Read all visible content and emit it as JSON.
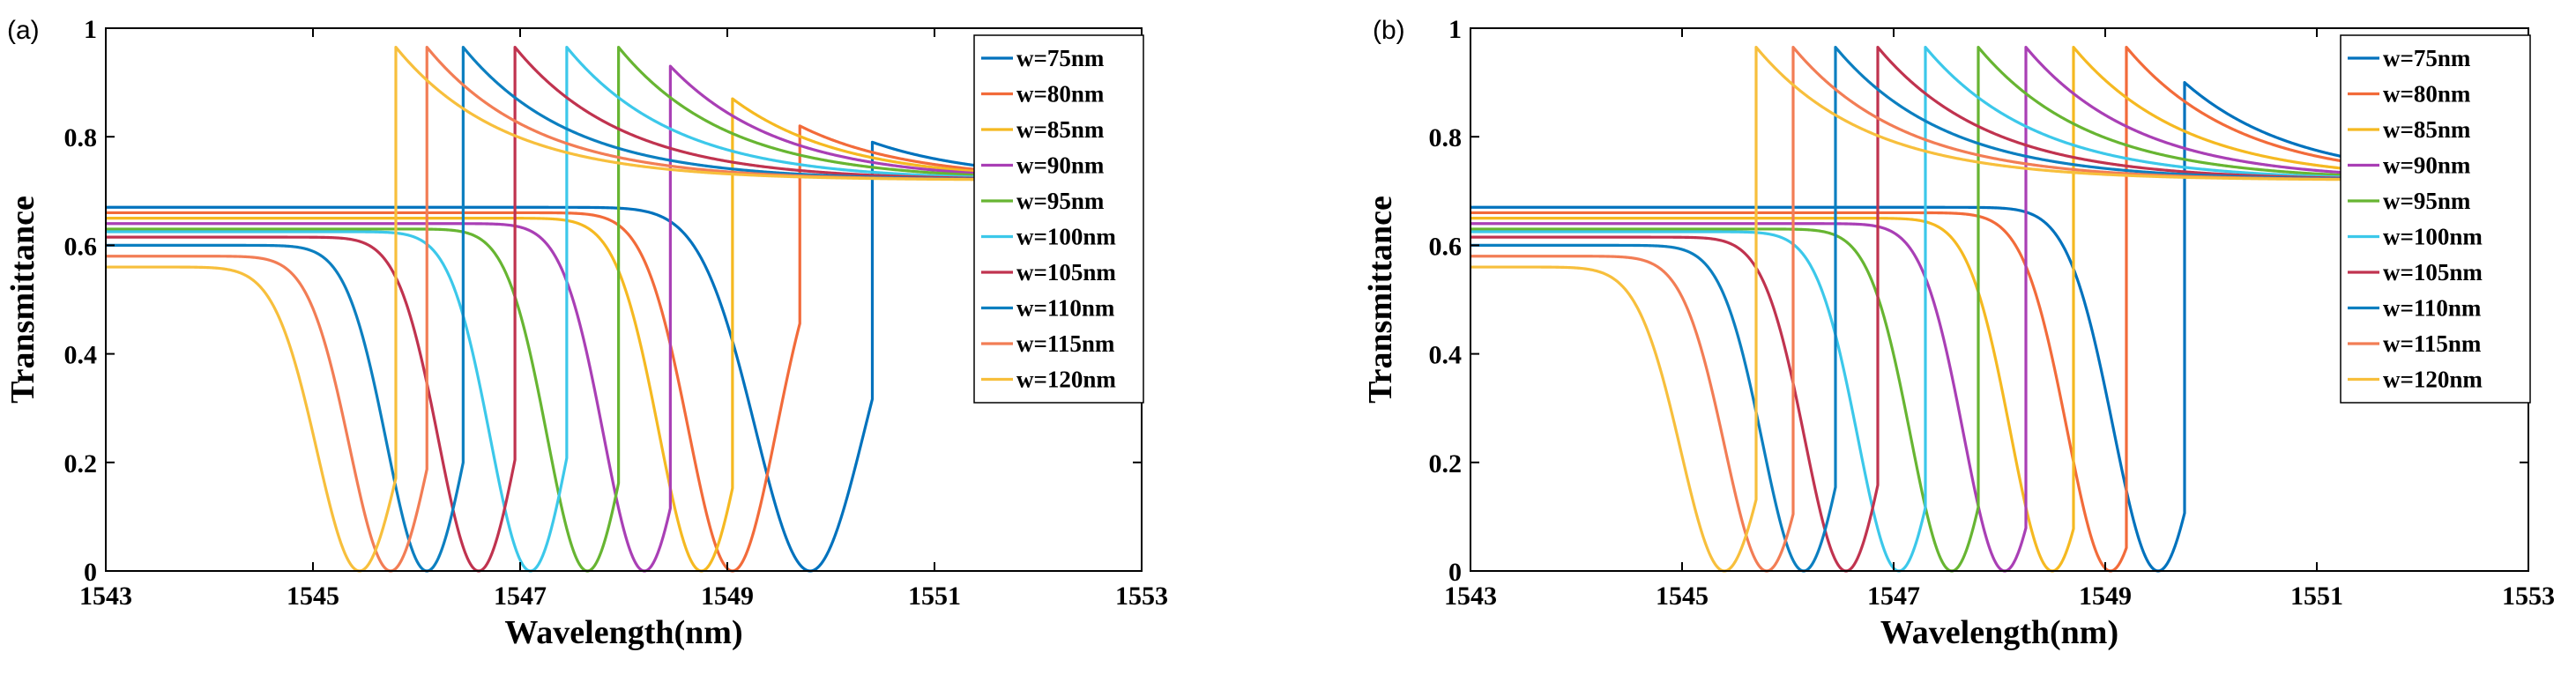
{
  "figure": {
    "panels": [
      {
        "label": "(a)"
      },
      {
        "label": "(b)"
      }
    ]
  },
  "chart_data": [
    {
      "type": "line",
      "panel": "(a)",
      "title": "",
      "xlabel": "Wavelength(nm)",
      "ylabel": "Transmittance",
      "xlim": [
        1543,
        1553
      ],
      "ylim": [
        0,
        1
      ],
      "xticks": [
        1543,
        1545,
        1547,
        1549,
        1551,
        1553
      ],
      "yticks": [
        0,
        0.2,
        0.4,
        0.6,
        0.8,
        1
      ],
      "ytick_labels": [
        "0",
        "0.2",
        "0.4",
        "0.6",
        "0.8",
        "1"
      ],
      "grid": false,
      "legend_position": "top-right",
      "series": [
        {
          "name": "w=75nm",
          "color": "#0072bd",
          "start": 0.67,
          "dip": 1549.8,
          "width": 0.75,
          "jump": 1550.4,
          "peak": 0.79,
          "min": 0.0
        },
        {
          "name": "w=80nm",
          "color": "#f26b3a",
          "start": 0.66,
          "dip": 1549.05,
          "width": 0.6,
          "jump": 1549.7,
          "peak": 0.82,
          "min": 0.0
        },
        {
          "name": "w=85nm",
          "color": "#f5b921",
          "start": 0.65,
          "dip": 1548.75,
          "width": 0.58,
          "jump": 1549.05,
          "peak": 0.87,
          "min": 0.0
        },
        {
          "name": "w=90nm",
          "color": "#a93fb5",
          "start": 0.64,
          "dip": 1548.2,
          "width": 0.56,
          "jump": 1548.45,
          "peak": 0.93,
          "min": 0.0
        },
        {
          "name": "w=95nm",
          "color": "#67b532",
          "start": 0.63,
          "dip": 1547.65,
          "width": 0.55,
          "jump": 1547.95,
          "peak": 0.965,
          "min": 0.0
        },
        {
          "name": "w=100nm",
          "color": "#3cc8ea",
          "start": 0.625,
          "dip": 1547.1,
          "width": 0.55,
          "jump": 1547.45,
          "peak": 0.965,
          "min": 0.0
        },
        {
          "name": "w=105nm",
          "color": "#c0334f",
          "start": 0.615,
          "dip": 1546.6,
          "width": 0.55,
          "jump": 1546.95,
          "peak": 0.965,
          "min": 0.0
        },
        {
          "name": "w=110nm",
          "color": "#0c7fc0",
          "start": 0.6,
          "dip": 1546.1,
          "width": 0.55,
          "jump": 1546.45,
          "peak": 0.965,
          "min": 0.0
        },
        {
          "name": "w=115nm",
          "color": "#f27d55",
          "start": 0.58,
          "dip": 1545.75,
          "width": 0.56,
          "jump": 1546.1,
          "peak": 0.965,
          "min": 0.0
        },
        {
          "name": "w=120nm",
          "color": "#f7bf3c",
          "start": 0.56,
          "dip": 1545.45,
          "width": 0.58,
          "jump": 1545.8,
          "peak": 0.965,
          "min": 0.0
        }
      ]
    },
    {
      "type": "line",
      "panel": "(b)",
      "title": "",
      "xlabel": "Wavelength(nm)",
      "ylabel": "Transmittance",
      "xlim": [
        1543,
        1553
      ],
      "ylim": [
        0,
        1
      ],
      "xticks": [
        1543,
        1545,
        1547,
        1549,
        1551,
        1553
      ],
      "yticks": [
        0,
        0.2,
        0.4,
        0.6,
        0.8,
        1
      ],
      "ytick_labels": [
        "0",
        "0.2",
        "0.4",
        "0.6",
        "0.8",
        "1"
      ],
      "grid": false,
      "legend_position": "top-right",
      "series": [
        {
          "name": "w=75nm",
          "color": "#0072bd",
          "start": 0.67,
          "dip": 1549.5,
          "width": 0.6,
          "jump": 1549.75,
          "peak": 0.9,
          "min": 0.0
        },
        {
          "name": "w=80nm",
          "color": "#f26b3a",
          "start": 0.66,
          "dip": 1549.05,
          "width": 0.58,
          "jump": 1549.2,
          "peak": 0.965,
          "min": 0.0
        },
        {
          "name": "w=85nm",
          "color": "#f5b921",
          "start": 0.65,
          "dip": 1548.5,
          "width": 0.56,
          "jump": 1548.7,
          "peak": 0.965,
          "min": 0.0
        },
        {
          "name": "w=90nm",
          "color": "#a93fb5",
          "start": 0.64,
          "dip": 1548.05,
          "width": 0.55,
          "jump": 1548.25,
          "peak": 0.965,
          "min": 0.0
        },
        {
          "name": "w=95nm",
          "color": "#67b532",
          "start": 0.63,
          "dip": 1547.55,
          "width": 0.55,
          "jump": 1547.8,
          "peak": 0.965,
          "min": 0.0
        },
        {
          "name": "w=100nm",
          "color": "#3cc8ea",
          "start": 0.625,
          "dip": 1547.05,
          "width": 0.55,
          "jump": 1547.3,
          "peak": 0.965,
          "min": 0.0
        },
        {
          "name": "w=105nm",
          "color": "#c0334f",
          "start": 0.615,
          "dip": 1546.55,
          "width": 0.55,
          "jump": 1546.85,
          "peak": 0.965,
          "min": 0.0
        },
        {
          "name": "w=110nm",
          "color": "#0c7fc0",
          "start": 0.6,
          "dip": 1546.15,
          "width": 0.55,
          "jump": 1546.45,
          "peak": 0.965,
          "min": 0.0
        },
        {
          "name": "w=115nm",
          "color": "#f27d55",
          "start": 0.58,
          "dip": 1545.8,
          "width": 0.56,
          "jump": 1546.05,
          "peak": 0.965,
          "min": 0.0
        },
        {
          "name": "w=120nm",
          "color": "#f7bf3c",
          "start": 0.56,
          "dip": 1545.4,
          "width": 0.58,
          "jump": 1545.7,
          "peak": 0.965,
          "min": 0.0
        }
      ]
    }
  ]
}
